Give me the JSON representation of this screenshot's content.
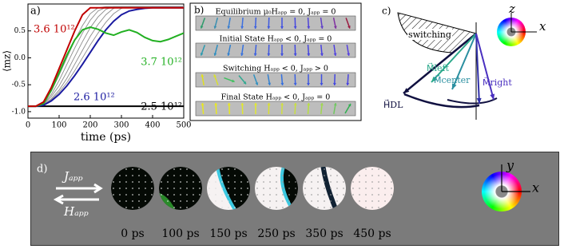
{
  "chart_data": {
    "type": "line",
    "panel_label": "a)",
    "xlabel": "time (ps)",
    "ylabel": "⟨mz⟩",
    "x": [
      0,
      25,
      50,
      75,
      100,
      125,
      150,
      175,
      200,
      225,
      250,
      275,
      300,
      325,
      350,
      375,
      400,
      425,
      450,
      475,
      500
    ],
    "xlim": [
      0,
      500
    ],
    "xticks": [
      0,
      100,
      200,
      300,
      400,
      500
    ],
    "ylim": [
      -1.12,
      1.0
    ],
    "yticks": [
      {
        "value": -1,
        "label": "-1.0"
      },
      -0.5,
      {
        "value": 0,
        "label": "0.0"
      },
      0.5
    ],
    "series": [
      {
        "name": "3.6 10¹²",
        "color": "#c00000",
        "values": [
          -0.9,
          -0.9,
          -0.82,
          -0.55,
          -0.2,
          0.15,
          0.5,
          0.8,
          0.93,
          0.93,
          0.93,
          0.93,
          0.93,
          0.93,
          0.93,
          0.93,
          0.93,
          0.93,
          0.93,
          0.93,
          0.93
        ]
      },
      {
        "name": "3.7 10¹²",
        "color": "#22b022",
        "values": [
          -0.9,
          -0.9,
          -0.85,
          -0.6,
          -0.28,
          0.05,
          0.33,
          0.52,
          0.57,
          0.53,
          0.46,
          0.42,
          0.48,
          0.52,
          0.47,
          0.38,
          0.32,
          0.3,
          0.34,
          0.4,
          0.46
        ]
      },
      {
        "name": "2.6 10¹²",
        "color": "#1a1aa0",
        "values": [
          -0.9,
          -0.9,
          -0.88,
          -0.8,
          -0.68,
          -0.52,
          -0.33,
          -0.12,
          0.1,
          0.32,
          0.52,
          0.68,
          0.8,
          0.87,
          0.9,
          0.92,
          0.93,
          0.93,
          0.93,
          0.93,
          0.93
        ]
      },
      {
        "name": "2.5 10¹²",
        "color": "#000000",
        "values": [
          -0.9,
          -0.9,
          -0.9,
          -0.9,
          -0.9,
          -0.9,
          -0.9,
          -0.9,
          -0.9,
          -0.9,
          -0.9,
          -0.9,
          -0.9,
          -0.9,
          -0.9,
          -0.9,
          -0.9,
          -0.9,
          -0.9,
          -0.9,
          -0.9
        ]
      },
      {
        "color": "#8c8c8c",
        "values": [
          -0.9,
          -0.9,
          -0.84,
          -0.62,
          -0.32,
          0.0,
          0.32,
          0.6,
          0.82,
          0.93,
          0.95,
          0.95,
          0.95,
          0.95,
          0.95,
          0.95,
          0.95,
          0.95,
          0.95,
          0.95,
          0.95
        ]
      },
      {
        "color": "#8c8c8c",
        "values": [
          -0.9,
          -0.9,
          -0.86,
          -0.68,
          -0.42,
          -0.12,
          0.18,
          0.46,
          0.7,
          0.87,
          0.94,
          0.95,
          0.95,
          0.95,
          0.95,
          0.95,
          0.95,
          0.95,
          0.95,
          0.95,
          0.95
        ]
      },
      {
        "color": "#8c8c8c",
        "values": [
          -0.9,
          -0.9,
          -0.87,
          -0.72,
          -0.52,
          -0.26,
          0.02,
          0.3,
          0.56,
          0.76,
          0.9,
          0.95,
          0.95,
          0.95,
          0.95,
          0.95,
          0.95,
          0.95,
          0.95,
          0.95,
          0.95
        ]
      },
      {
        "color": "#8c8c8c",
        "values": [
          -0.9,
          -0.9,
          -0.88,
          -0.76,
          -0.6,
          -0.38,
          -0.12,
          0.14,
          0.4,
          0.62,
          0.8,
          0.92,
          0.95,
          0.95,
          0.95,
          0.95,
          0.95,
          0.95,
          0.95,
          0.95,
          0.95
        ]
      },
      {
        "color": "#8c8c8c",
        "values": [
          -0.9,
          -0.9,
          -0.88,
          -0.78,
          -0.64,
          -0.46,
          -0.24,
          0.0,
          0.24,
          0.46,
          0.66,
          0.82,
          0.92,
          0.95,
          0.95,
          0.95,
          0.95,
          0.95,
          0.95,
          0.95,
          0.95
        ]
      }
    ]
  },
  "panel_b": {
    "label": "b)",
    "strips": [
      {
        "title": "Equilibrium μ₀Hₐₚₚ = 0, Jₐₚₚ = 0"
      },
      {
        "title": "Initial State Hₐₚₚ < 0, Jₐₚₚ = 0"
      },
      {
        "title": "Switching Hₐₚₚ < 0, Jₐₚₚ > 0"
      },
      {
        "title": "Final State Hₐₚₚ < 0, Jₐₚₚ = 0"
      }
    ]
  },
  "panel_c": {
    "label": "c)",
    "switching": "switching",
    "z": "z",
    "x": "x",
    "h_dl": "H⃗DL",
    "m_left": "M⃗left",
    "m_center": "M⃗center",
    "m_right": "M⃗right"
  },
  "panel_d": {
    "label": "d)",
    "j": "Jₐₚₚ",
    "h": "Hₐₚₚ",
    "y": "y",
    "x": "x",
    "times": [
      "0 ps",
      "100 ps",
      "150 ps",
      "250 ps",
      "350 ps",
      "450 ps"
    ]
  }
}
